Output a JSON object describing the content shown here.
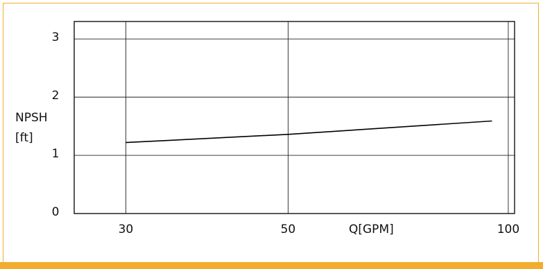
{
  "chart_data": {
    "type": "line",
    "title": "",
    "xlabel": "Q[GPM]",
    "ylabel_line1": "NPSH",
    "ylabel_line2": "[ft]",
    "x_ticks": [
      {
        "label": "30",
        "value": 30
      },
      {
        "label": "50",
        "value": 50
      },
      {
        "label": "100",
        "value": 100
      }
    ],
    "y_ticks": [
      {
        "label": "0",
        "value": 0
      },
      {
        "label": "1",
        "value": 1
      },
      {
        "label": "2",
        "value": 2
      },
      {
        "label": "3",
        "value": 3
      }
    ],
    "ylim": [
      0,
      3.3
    ],
    "grid": true,
    "series": [
      {
        "x": [
          30,
          50,
          95
        ],
        "y": [
          1.22,
          1.36,
          1.59
        ]
      }
    ]
  },
  "colors": {
    "frame_accent": "#f2ad2e",
    "line": "#000000",
    "grid": "#222222"
  }
}
